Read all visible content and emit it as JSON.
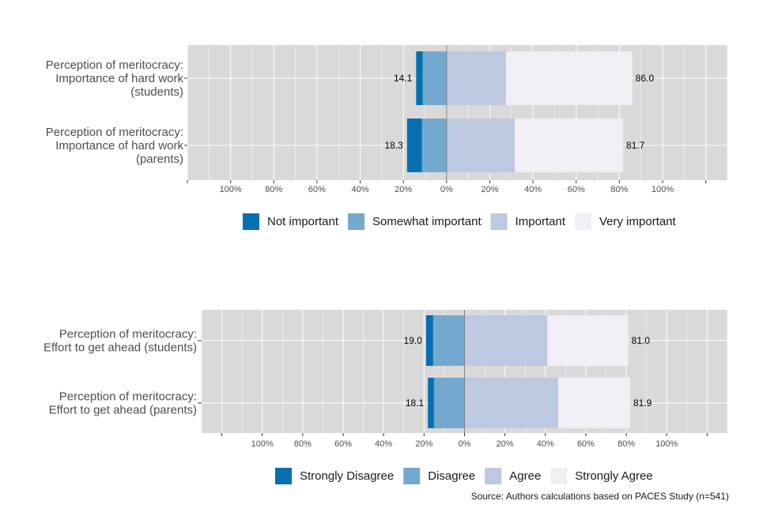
{
  "chart_data": [
    {
      "type": "bar",
      "orientation": "horizontal",
      "stacking": "diverging",
      "categories": [
        [
          "Perception of meritocracy:",
          "Importance of hard work",
          "(students)"
        ],
        [
          "Perception of meritocracy:",
          "Importance of hard work",
          "(parents)"
        ]
      ],
      "series": [
        {
          "name": "Not important",
          "values": [
            3.0,
            6.9
          ],
          "side": "negative"
        },
        {
          "name": "Somewhat important",
          "values": [
            11.1,
            11.4
          ],
          "side": "negative"
        },
        {
          "name": "Important",
          "values": [
            27.5,
            31.6
          ],
          "side": "positive"
        },
        {
          "name": "Very important",
          "values": [
            58.5,
            50.1
          ],
          "side": "positive"
        }
      ],
      "left_totals": [
        "14.1",
        "18.3"
      ],
      "right_totals": [
        "86.0",
        "81.7"
      ],
      "xlim": [
        -120,
        130
      ],
      "x_ticks": [
        -100,
        -80,
        -60,
        -40,
        -20,
        0,
        20,
        40,
        60,
        80,
        100
      ],
      "x_tick_labels": [
        "100%",
        "80%",
        "60%",
        "40%",
        "20%",
        "0%",
        "20%",
        "40%",
        "60%",
        "80%",
        "100%"
      ],
      "grid": true,
      "legend_position": "bottom"
    },
    {
      "type": "bar",
      "orientation": "horizontal",
      "stacking": "diverging",
      "categories": [
        [
          "Perception of meritocracy:",
          "Effort to get ahead (students)"
        ],
        [
          "Perception of meritocracy:",
          "Effort to get ahead  (parents)"
        ]
      ],
      "series": [
        {
          "name": "Strongly Disagree",
          "values": [
            3.5,
            3.0
          ],
          "side": "negative"
        },
        {
          "name": "Disagree",
          "values": [
            15.5,
            15.1
          ],
          "side": "negative"
        },
        {
          "name": "Agree",
          "values": [
            40.9,
            46.3
          ],
          "side": "positive"
        },
        {
          "name": "Strongly Agree",
          "values": [
            40.1,
            35.6
          ],
          "side": "positive"
        }
      ],
      "left_totals": [
        "19.0",
        "18.1"
      ],
      "right_totals": [
        "81.0",
        "81.9"
      ],
      "xlim": [
        -130,
        130
      ],
      "x_ticks": [
        -100,
        -80,
        -60,
        -40,
        -20,
        0,
        20,
        40,
        60,
        80,
        100
      ],
      "x_tick_labels": [
        "100%",
        "80%",
        "60%",
        "40%",
        "20%",
        "0%",
        "20%",
        "40%",
        "60%",
        "80%",
        "100%"
      ],
      "grid": true,
      "legend_position": "bottom"
    }
  ],
  "colors": {
    "panel_background": "#d9d9d9",
    "grid": "#ffffff",
    "zero_line": "#7f7f7f",
    "series": [
      "#0570b0",
      "#74a9cf",
      "#bdc9e1",
      "#f1eef6"
    ]
  },
  "source_note": "Source: Authors calculations based on PACES Study (n=541)"
}
